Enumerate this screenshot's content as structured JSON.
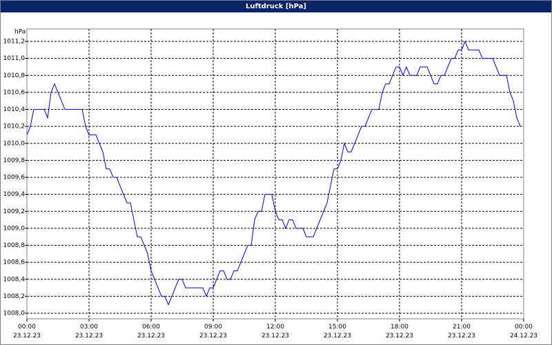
{
  "chart_data": {
    "type": "line",
    "title": "Luftdruck [hPa]",
    "y_label": "hPa",
    "xlim": [
      0,
      1440
    ],
    "ylim": [
      1008.0,
      1011.2
    ],
    "grid": true,
    "xticks": [
      {
        "value": 0,
        "label": "00:00\n23.12.23"
      },
      {
        "value": 180,
        "label": "03:00\n23.12.23"
      },
      {
        "value": 360,
        "label": "06:00\n23.12.23"
      },
      {
        "value": 540,
        "label": "09:00\n23.12.23"
      },
      {
        "value": 720,
        "label": "12:00\n23.12.23"
      },
      {
        "value": 900,
        "label": "15:00\n23.12.23"
      },
      {
        "value": 1080,
        "label": "18:00\n23.12.23"
      },
      {
        "value": 1260,
        "label": "21:00\n23.12.23"
      },
      {
        "value": 1440,
        "label": "00:00\n24.12.23"
      }
    ],
    "yticks": [
      {
        "value": 1008.0,
        "label": "1008,0"
      },
      {
        "value": 1008.2,
        "label": "1008,2"
      },
      {
        "value": 1008.4,
        "label": "1008,4"
      },
      {
        "value": 1008.6,
        "label": "1008,6"
      },
      {
        "value": 1008.8,
        "label": "1008,8"
      },
      {
        "value": 1009.0,
        "label": "1009,0"
      },
      {
        "value": 1009.2,
        "label": "1009,2"
      },
      {
        "value": 1009.4,
        "label": "1009,4"
      },
      {
        "value": 1009.6,
        "label": "1009,6"
      },
      {
        "value": 1009.8,
        "label": "1009,8"
      },
      {
        "value": 1010.0,
        "label": "1010,0"
      },
      {
        "value": 1010.2,
        "label": "1010,2"
      },
      {
        "value": 1010.4,
        "label": "1010,4"
      },
      {
        "value": 1010.6,
        "label": "1010,6"
      },
      {
        "value": 1010.8,
        "label": "1010,8"
      },
      {
        "value": 1011.0,
        "label": "1011,0"
      },
      {
        "value": 1011.2,
        "label": "1011,2"
      }
    ],
    "x": [
      0,
      10,
      20,
      30,
      40,
      50,
      60,
      70,
      80,
      90,
      100,
      110,
      120,
      130,
      140,
      150,
      160,
      170,
      180,
      190,
      200,
      210,
      220,
      230,
      240,
      250,
      260,
      270,
      280,
      290,
      300,
      310,
      320,
      330,
      340,
      350,
      360,
      370,
      380,
      390,
      400,
      410,
      420,
      430,
      440,
      450,
      460,
      470,
      480,
      490,
      500,
      510,
      520,
      530,
      540,
      550,
      560,
      570,
      580,
      590,
      600,
      610,
      620,
      630,
      640,
      650,
      660,
      670,
      680,
      690,
      700,
      710,
      720,
      730,
      740,
      750,
      760,
      770,
      780,
      790,
      800,
      810,
      820,
      830,
      840,
      850,
      860,
      870,
      880,
      890,
      900,
      910,
      920,
      930,
      940,
      950,
      960,
      970,
      980,
      990,
      1000,
      1010,
      1020,
      1030,
      1040,
      1050,
      1060,
      1070,
      1080,
      1090,
      1100,
      1110,
      1120,
      1130,
      1140,
      1150,
      1160,
      1170,
      1180,
      1190,
      1200,
      1210,
      1220,
      1230,
      1240,
      1250,
      1260,
      1270,
      1280,
      1290,
      1300,
      1310,
      1320,
      1330,
      1340,
      1350,
      1360,
      1370,
      1380,
      1390,
      1400,
      1410,
      1420,
      1430
    ],
    "series": [
      {
        "color": "#0000cc",
        "values": [
          1010.1,
          1010.2,
          1010.4,
          1010.4,
          1010.4,
          1010.4,
          1010.3,
          1010.6,
          1010.7,
          1010.6,
          1010.5,
          1010.4,
          1010.4,
          1010.4,
          1010.4,
          1010.4,
          1010.4,
          1010.2,
          1010.1,
          1010.1,
          1010.1,
          1010.0,
          1009.9,
          1009.7,
          1009.7,
          1009.6,
          1009.6,
          1009.5,
          1009.4,
          1009.3,
          1009.3,
          1009.1,
          1008.9,
          1008.9,
          1008.8,
          1008.7,
          1008.5,
          1008.4,
          1008.3,
          1008.2,
          1008.2,
          1008.1,
          1008.2,
          1008.3,
          1008.4,
          1008.4,
          1008.3,
          1008.3,
          1008.3,
          1008.3,
          1008.3,
          1008.3,
          1008.2,
          1008.3,
          1008.3,
          1008.4,
          1008.5,
          1008.5,
          1008.4,
          1008.4,
          1008.5,
          1008.5,
          1008.6,
          1008.7,
          1008.8,
          1008.8,
          1009.1,
          1009.2,
          1009.2,
          1009.4,
          1009.4,
          1009.4,
          1009.2,
          1009.1,
          1009.1,
          1009.0,
          1009.1,
          1009.1,
          1009.0,
          1009.0,
          1009.0,
          1008.9,
          1008.9,
          1008.9,
          1009.0,
          1009.1,
          1009.2,
          1009.3,
          1009.5,
          1009.7,
          1009.7,
          1009.8,
          1010.0,
          1009.9,
          1009.9,
          1010.0,
          1010.1,
          1010.2,
          1010.2,
          1010.3,
          1010.4,
          1010.4,
          1010.4,
          1010.6,
          1010.7,
          1010.7,
          1010.8,
          1010.9,
          1010.9,
          1010.8,
          1010.9,
          1010.8,
          1010.8,
          1010.8,
          1010.9,
          1010.9,
          1010.9,
          1010.8,
          1010.7,
          1010.7,
          1010.8,
          1010.8,
          1010.9,
          1011.0,
          1011.0,
          1011.1,
          1011.1,
          1011.2,
          1011.1,
          1011.1,
          1011.1,
          1011.1,
          1011.0,
          1011.0,
          1011.0,
          1011.0,
          1010.9,
          1010.8,
          1010.8,
          1010.8,
          1010.6,
          1010.5,
          1010.3,
          1010.2
        ]
      }
    ]
  }
}
